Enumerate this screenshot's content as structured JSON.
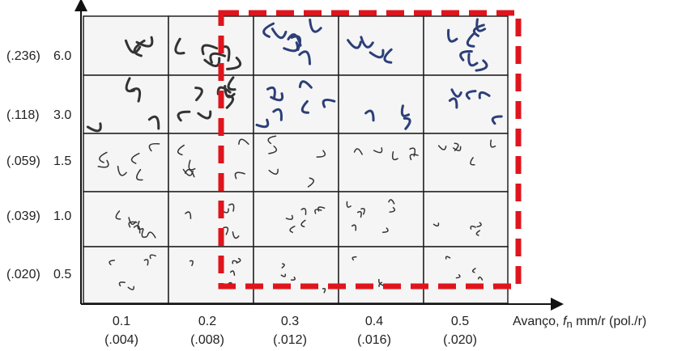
{
  "rows": [
    {
      "imperial": "(.236)",
      "metric": "6.0"
    },
    {
      "imperial": "(.118)",
      "metric": "3.0"
    },
    {
      "imperial": "(.059)",
      "metric": "1.5"
    },
    {
      "imperial": "(.039)",
      "metric": "1.0"
    },
    {
      "imperial": "(.020)",
      "metric": "0.5"
    }
  ],
  "columns": [
    {
      "metric": "0.1",
      "imperial": "(.004)"
    },
    {
      "metric": "0.2",
      "imperial": "(.008)"
    },
    {
      "metric": "0.3",
      "imperial": "(.012)"
    },
    {
      "metric": "0.4",
      "imperial": "(.016)"
    },
    {
      "metric": "0.5",
      "imperial": "(.020)"
    }
  ],
  "x_axis_label": {
    "prefix": "Avanço,",
    "symbol": "f",
    "subscript": "n",
    "unit": "mm/r (pol./r)"
  }
}
